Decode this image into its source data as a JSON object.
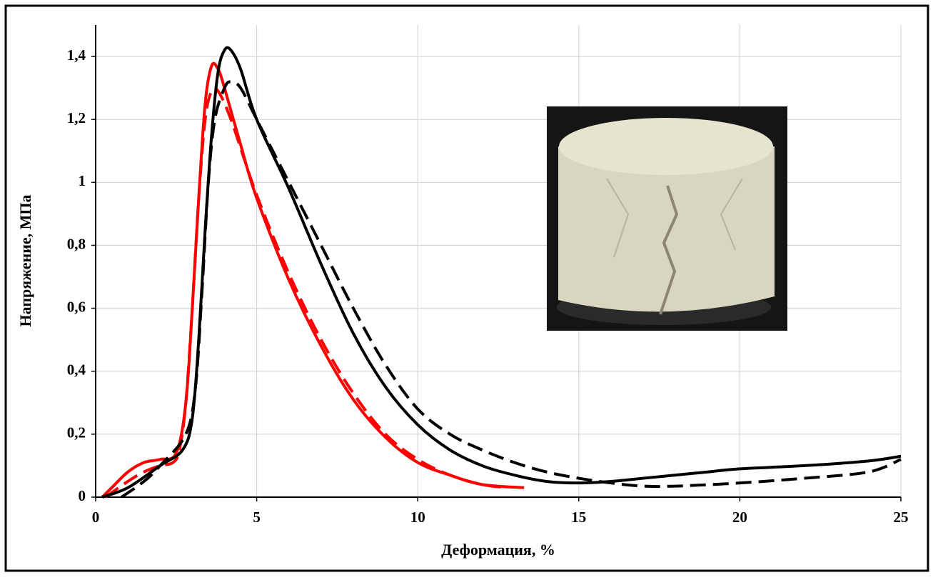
{
  "chart_data": {
    "type": "line",
    "x_label": "Деформация, %",
    "y_label": "Напряжение, МПа",
    "xlim": [
      0,
      25
    ],
    "xticks": [
      0,
      5,
      10,
      15,
      20,
      25
    ],
    "ylim": [
      0,
      1.5
    ],
    "yticks": [
      0,
      {
        "value": 0.2,
        "label": "0,2"
      },
      {
        "value": 0.4,
        "label": "0,4"
      },
      {
        "value": 0.6,
        "label": "0,6"
      },
      {
        "value": 0.8,
        "label": "0,8"
      },
      1,
      {
        "value": 1.2,
        "label": "1,2"
      },
      {
        "value": 1.4,
        "label": "1,4"
      }
    ],
    "grid": true,
    "series": [
      {
        "color": "#ff0000",
        "dashed": false,
        "x": [
          0.2,
          0.5,
          1,
          1.5,
          2,
          2.5,
          2.8,
          3.0,
          3.2,
          3.4,
          3.6,
          3.8,
          4,
          4.5,
          5,
          6,
          7,
          8,
          9,
          10,
          11,
          12,
          13.3
        ],
        "values": [
          0,
          0.03,
          0.08,
          0.11,
          0.12,
          0.14,
          0.3,
          0.6,
          0.95,
          1.25,
          1.37,
          1.36,
          1.3,
          1.12,
          0.95,
          0.69,
          0.48,
          0.31,
          0.19,
          0.11,
          0.07,
          0.04,
          0.03
        ]
      },
      {
        "color": "#ff0000",
        "dashed": true,
        "x": [
          0.3,
          1,
          1.5,
          2,
          2.4,
          2.6,
          2.8,
          3.0,
          3.2,
          3.4,
          3.6,
          3.8,
          4.2,
          5,
          6,
          7,
          8,
          9,
          10,
          11,
          12,
          12.8
        ],
        "values": [
          0,
          0.05,
          0.08,
          0.1,
          0.11,
          0.15,
          0.3,
          0.6,
          0.95,
          1.2,
          1.29,
          1.29,
          1.2,
          0.96,
          0.71,
          0.5,
          0.33,
          0.2,
          0.12,
          0.07,
          0.04,
          0.03
        ]
      },
      {
        "color": "#000000",
        "dashed": false,
        "x": [
          0.2,
          1,
          2,
          2.7,
          3.0,
          3.2,
          3.4,
          3.6,
          3.8,
          4,
          4.2,
          4.5,
          5,
          6,
          7,
          8,
          9,
          10,
          11,
          12,
          13,
          14,
          15,
          16,
          17,
          18,
          19,
          20,
          22,
          24,
          25
        ],
        "values": [
          0,
          0.03,
          0.1,
          0.15,
          0.25,
          0.5,
          0.85,
          1.15,
          1.35,
          1.42,
          1.42,
          1.36,
          1.2,
          0.98,
          0.74,
          0.52,
          0.35,
          0.23,
          0.15,
          0.1,
          0.07,
          0.05,
          0.045,
          0.05,
          0.06,
          0.07,
          0.08,
          0.09,
          0.1,
          0.115,
          0.13
        ]
      },
      {
        "color": "#000000",
        "dashed": true,
        "x": [
          0.8,
          1.5,
          2,
          2.8,
          3.1,
          3.3,
          3.5,
          3.7,
          4,
          4.2,
          4.5,
          5,
          6,
          7,
          8,
          9,
          10,
          11,
          12,
          13,
          14,
          15,
          16,
          17,
          18,
          20,
          22,
          24,
          25
        ],
        "values": [
          0,
          0.05,
          0.1,
          0.2,
          0.35,
          0.65,
          1.0,
          1.2,
          1.3,
          1.32,
          1.3,
          1.2,
          1.0,
          0.8,
          0.6,
          0.42,
          0.28,
          0.2,
          0.15,
          0.11,
          0.08,
          0.06,
          0.045,
          0.035,
          0.035,
          0.045,
          0.06,
          0.08,
          0.12
        ]
      }
    ]
  }
}
